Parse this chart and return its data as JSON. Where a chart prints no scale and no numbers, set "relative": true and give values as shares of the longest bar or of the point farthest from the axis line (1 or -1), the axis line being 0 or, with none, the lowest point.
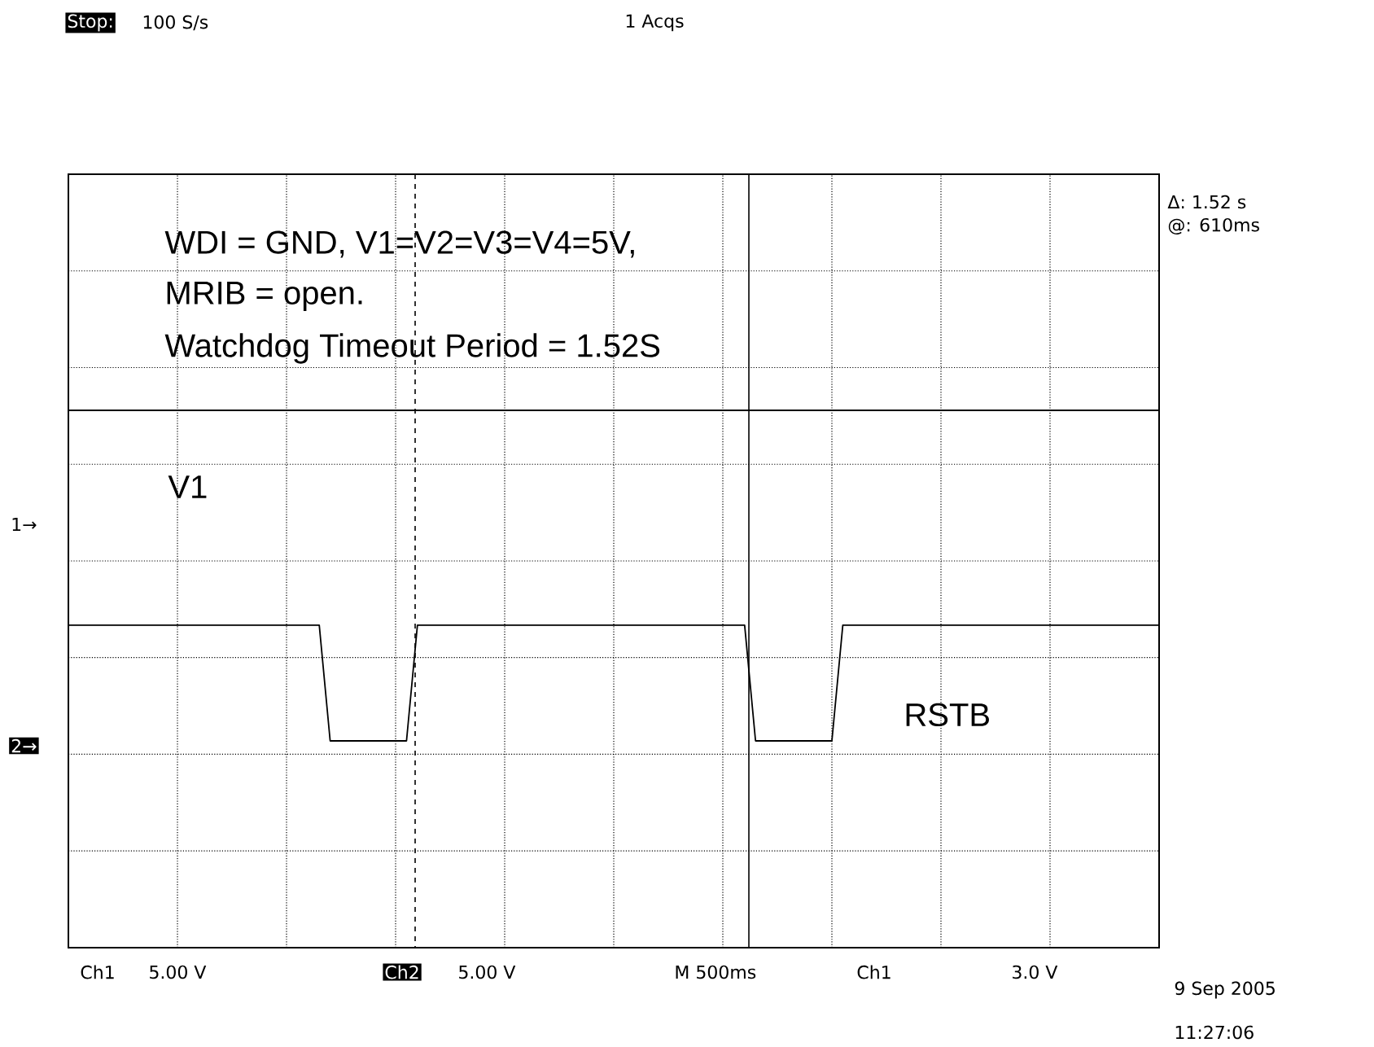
{
  "chart_data": {
    "type": "line",
    "relative": true,
    "categories": [
      null,
      null,
      null,
      null,
      null,
      null,
      null,
      null,
      null,
      null,
      null,
      null,
      null,
      null,
      null,
      null,
      null,
      null,
      null,
      null,
      null,
      null,
      null,
      null,
      null,
      null,
      null,
      null,
      null,
      null,
      null,
      null,
      null,
      null,
      null,
      null,
      null,
      null,
      null,
      null,
      null,
      null,
      null,
      null,
      null,
      null,
      null,
      null,
      null,
      null,
      null,
      null,
      null,
      null,
      null,
      null,
      null,
      null,
      null,
      null,
      null,
      null,
      null,
      null,
      null,
      null,
      null,
      null,
      null,
      null,
      null,
      null,
      null,
      null,
      null,
      null,
      null,
      null,
      null,
      null,
      null,
      null,
      null,
      null,
      null,
      null,
      null,
      null,
      null,
      null,
      null,
      null,
      null,
      null,
      null,
      null,
      null,
      null,
      null,
      null,
      null
    ],
    "grid": true,
    "legend": false,
    "marker": "none",
    "line_style": "solid",
    "series": [
      {
        "name": "V1",
        "color": "#000000",
        "values": [
          1,
          1,
          1,
          1,
          1,
          1,
          1,
          1,
          1,
          1,
          1,
          1,
          1,
          1,
          1,
          1,
          1,
          1,
          1,
          1,
          1,
          1,
          1,
          1,
          1,
          1,
          1,
          1,
          1,
          1,
          1,
          1,
          1,
          1,
          1,
          1,
          1,
          1,
          1,
          1,
          1,
          1,
          1,
          1,
          1,
          1,
          1,
          1,
          1,
          1,
          1,
          1,
          1,
          1,
          1,
          1,
          1,
          1,
          1,
          1,
          1,
          1,
          1,
          1,
          1,
          1,
          1,
          1,
          1,
          1,
          1,
          1,
          1,
          1,
          1,
          1,
          1,
          1,
          1,
          1,
          1,
          1,
          1,
          1,
          1,
          1,
          1,
          1,
          1,
          1,
          1,
          1,
          1,
          1,
          1,
          1,
          1,
          1,
          1,
          1,
          1
        ]
      },
      {
        "name": "RSTB",
        "color": "#000000",
        "values": [
          0.35,
          0.35,
          0.35,
          0.35,
          0.35,
          0.35,
          0.35,
          0.35,
          0.35,
          0.35,
          0.35,
          0.35,
          0.35,
          0.35,
          0.35,
          0.35,
          0.35,
          0.35,
          0.35,
          0.35,
          0.35,
          0.35,
          0.35,
          0.35,
          0,
          0,
          0,
          0,
          0,
          0,
          0,
          0,
          0.35,
          0.35,
          0.35,
          0.35,
          0.35,
          0.35,
          0.35,
          0.35,
          0.35,
          0.35,
          0.35,
          0.35,
          0.35,
          0.35,
          0.35,
          0.35,
          0.35,
          0.35,
          0.35,
          0.35,
          0.35,
          0.35,
          0.35,
          0.35,
          0.35,
          0.35,
          0.35,
          0.35,
          0.35,
          0.35,
          0.35,
          0,
          0,
          0,
          0,
          0,
          0,
          0,
          0,
          0.35,
          0.35,
          0.35,
          0.35,
          0.35,
          0.35,
          0.35,
          0.35,
          0.35,
          0.35,
          0.35,
          0.35,
          0.35,
          0.35,
          0.35,
          0.35,
          0.35,
          0.35,
          0.35,
          0.35,
          0.35,
          0.35,
          0.35,
          0.35,
          0.35,
          0.35,
          0.35,
          0.35,
          0.35,
          0.35
        ]
      }
    ],
    "annotations": [
      "Stop:",
      "100 S/s",
      "1 Acqs",
      "Δ: 1.52 s",
      "@: 610ms",
      "WDI = GND, V1=V2=V3=V4=5V,",
      "MRIB = open.",
      "Watchdog Timeout Period = 1.52S",
      "1→",
      "2→",
      "Ch1",
      "5.00 V",
      "Ch2",
      "5.00 V",
      "M 500ms",
      "Ch1",
      "3.0 V",
      "9 Sep 2005",
      "11:27:06"
    ]
  }
}
